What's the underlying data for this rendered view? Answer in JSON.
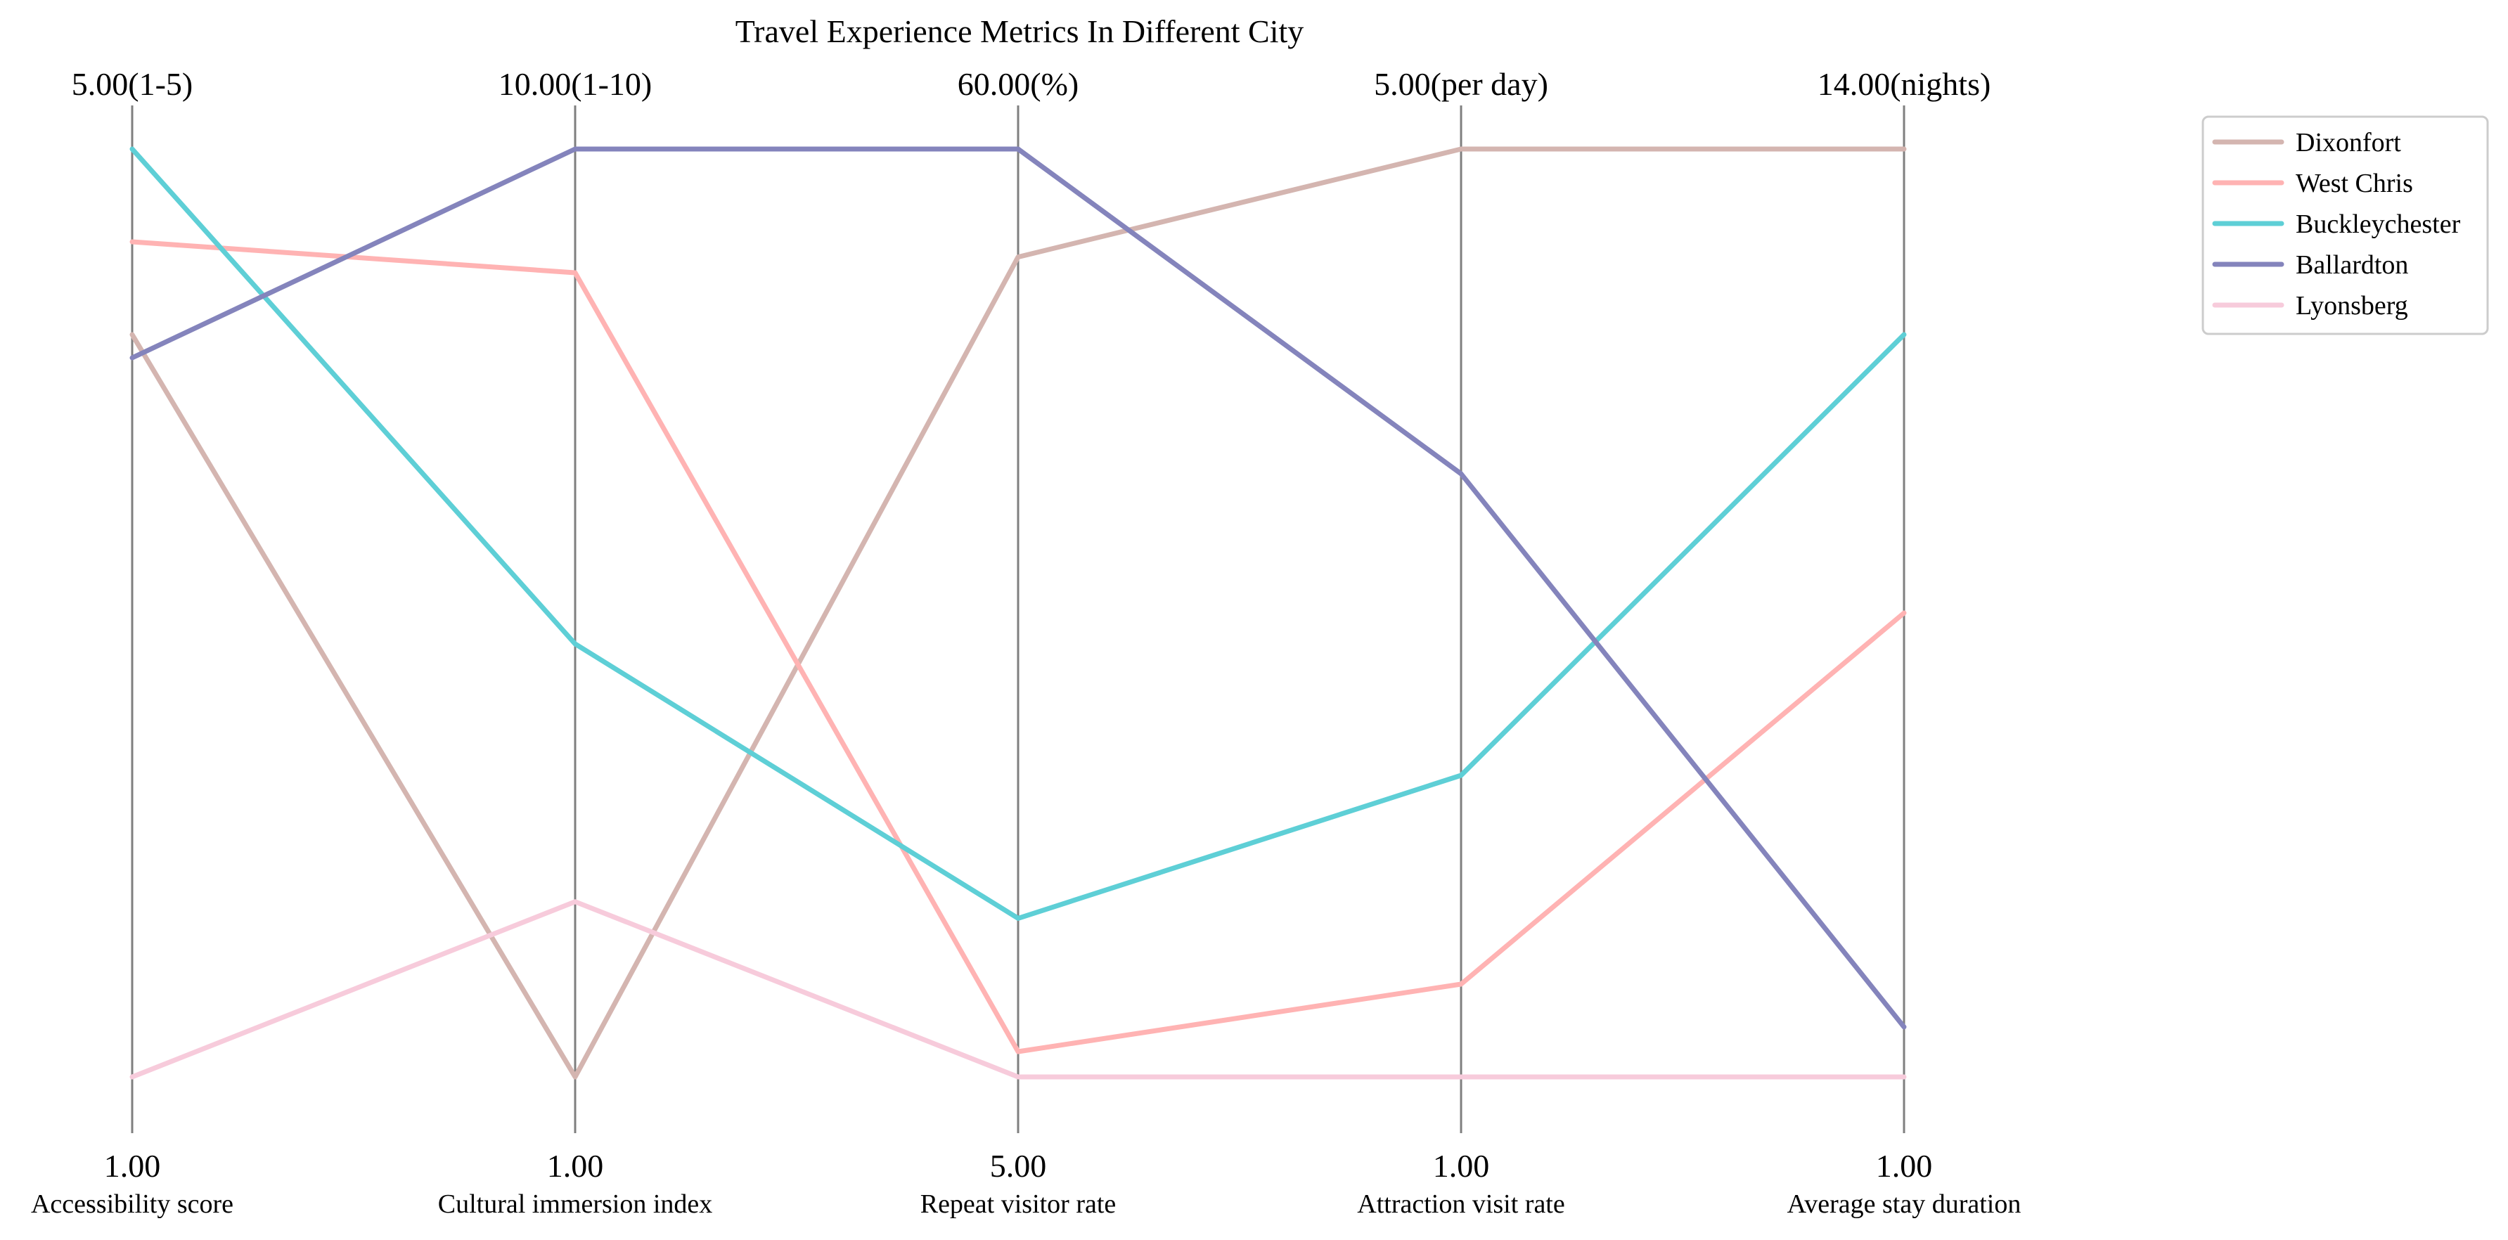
{
  "chart_data": {
    "type": "parallel-coordinates",
    "title": "Travel Experience Metrics In Different City",
    "axes": [
      {
        "label": "Accessibility score",
        "min": 1,
        "max": 5,
        "min_label": "1.00",
        "max_label": "5.00(1-5)"
      },
      {
        "label": "Cultural immersion index",
        "min": 1,
        "max": 10,
        "min_label": "1.00",
        "max_label": "10.00(1-10)"
      },
      {
        "label": "Repeat visitor rate",
        "min": 5,
        "max": 60,
        "min_label": "5.00",
        "max_label": "60.00(%)"
      },
      {
        "label": "Attraction visit rate",
        "min": 1,
        "max": 5,
        "min_label": "1.00",
        "max_label": "5.00(per day)"
      },
      {
        "label": "Average stay duration",
        "min": 1,
        "max": 14,
        "min_label": "1.00",
        "max_label": "14.00(nights)"
      }
    ],
    "series": [
      {
        "name": "Dixonfort",
        "color": "#d4b5b0",
        "values": [
          4.2,
          1.0,
          53.6,
          5.0,
          14.0
        ]
      },
      {
        "name": "West Chris",
        "color": "#ffb3b3",
        "values": [
          4.6,
          8.8,
          6.5,
          1.4,
          7.5
        ]
      },
      {
        "name": "Buckleychester",
        "color": "#5ecfd6",
        "values": [
          5.0,
          5.2,
          14.4,
          2.3,
          11.4
        ]
      },
      {
        "name": "Ballardton",
        "color": "#8484bc",
        "values": [
          4.1,
          10.0,
          60.0,
          3.6,
          1.7
        ]
      },
      {
        "name": "Lyonsberg",
        "color": "#f7cbdb",
        "values": [
          1.0,
          2.7,
          5.0,
          1.0,
          1.0
        ]
      }
    ],
    "legend": "top-right",
    "grid": false
  }
}
